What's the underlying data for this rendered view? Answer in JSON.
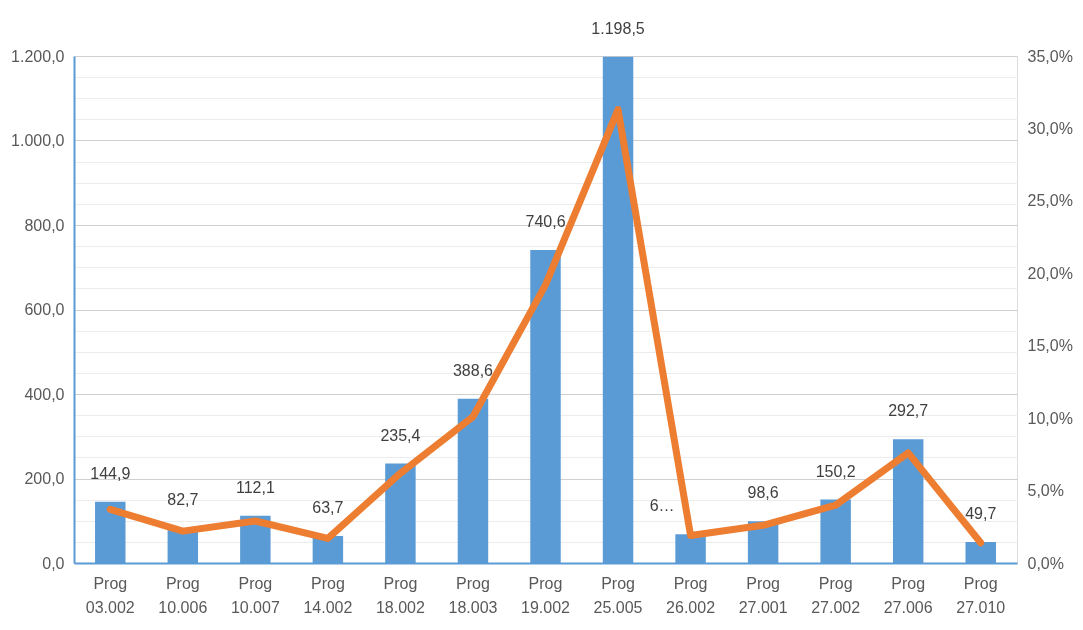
{
  "chart_data": {
    "type": "bar",
    "categories": [
      "Prog 03.002",
      "Prog 10.006",
      "Prog 10.007",
      "Prog 14.002",
      "Prog 18.002",
      "Prog 18.003",
      "Prog 19.002",
      "Prog 25.005",
      "Prog 26.002",
      "Prog 27.001",
      "Prog 27.002",
      "Prog 27.006",
      "Prog 27.010"
    ],
    "series": [
      {
        "color": "#5b9bd5",
        "values": [
          144.9,
          82.7,
          112.1,
          63.7,
          235.4,
          388.6,
          740.6,
          1198.5,
          68,
          98.6,
          150.2,
          292.7,
          49.7
        ],
        "value_labels": [
          "144,9",
          "82,7",
          "112,1",
          "63,7",
          "235,4",
          "388,6",
          "740,6",
          "1.198,5",
          "6…",
          "98,6",
          "150,2",
          "292,7",
          "49,7"
        ]
      },
      {
        "type": "line",
        "axis": "y2",
        "color": "#ed7d31",
        "values": [
          3.7,
          2.2,
          2.9,
          1.7,
          6.2,
          10.1,
          19.2,
          31.3,
          1.9,
          2.6,
          4.0,
          7.6,
          1.4
        ]
      }
    ],
    "ylim": [
      0,
      1200
    ],
    "yticks": [
      {
        "value": 0,
        "label": "0,0"
      },
      {
        "value": 50,
        "label": null
      },
      {
        "value": 100,
        "label": null
      },
      {
        "value": 150,
        "label": null
      },
      {
        "value": 200,
        "label": "200,0"
      },
      {
        "value": 250,
        "label": null
      },
      {
        "value": 300,
        "label": null
      },
      {
        "value": 350,
        "label": null
      },
      {
        "value": 400,
        "label": "400,0"
      },
      {
        "value": 450,
        "label": null
      },
      {
        "value": 500,
        "label": null
      },
      {
        "value": 550,
        "label": null
      },
      {
        "value": 600,
        "label": "600,0"
      },
      {
        "value": 650,
        "label": null
      },
      {
        "value": 700,
        "label": null
      },
      {
        "value": 750,
        "label": null
      },
      {
        "value": 800,
        "label": "800,0"
      },
      {
        "value": 850,
        "label": null
      },
      {
        "value": 900,
        "label": null
      },
      {
        "value": 950,
        "label": null
      },
      {
        "value": 1000,
        "label": "1.000,0"
      },
      {
        "value": 1050,
        "label": null
      },
      {
        "value": 1100,
        "label": null
      },
      {
        "value": 1150,
        "label": null
      },
      {
        "value": 1200,
        "label": "1.200,0"
      }
    ],
    "y2lim": [
      0,
      35
    ],
    "y2ticks": [
      {
        "value": 0,
        "label": "0,0%"
      },
      {
        "value": 5,
        "label": "5,0%"
      },
      {
        "value": 10,
        "label": "10,0%"
      },
      {
        "value": 15,
        "label": "15,0%"
      },
      {
        "value": 20,
        "label": "20,0%"
      },
      {
        "value": 25,
        "label": "25,0%"
      },
      {
        "value": 30,
        "label": "30,0%"
      },
      {
        "value": 35,
        "label": "35,0%"
      }
    ],
    "grid": "y",
    "marker": "none",
    "line_style": "solid"
  }
}
